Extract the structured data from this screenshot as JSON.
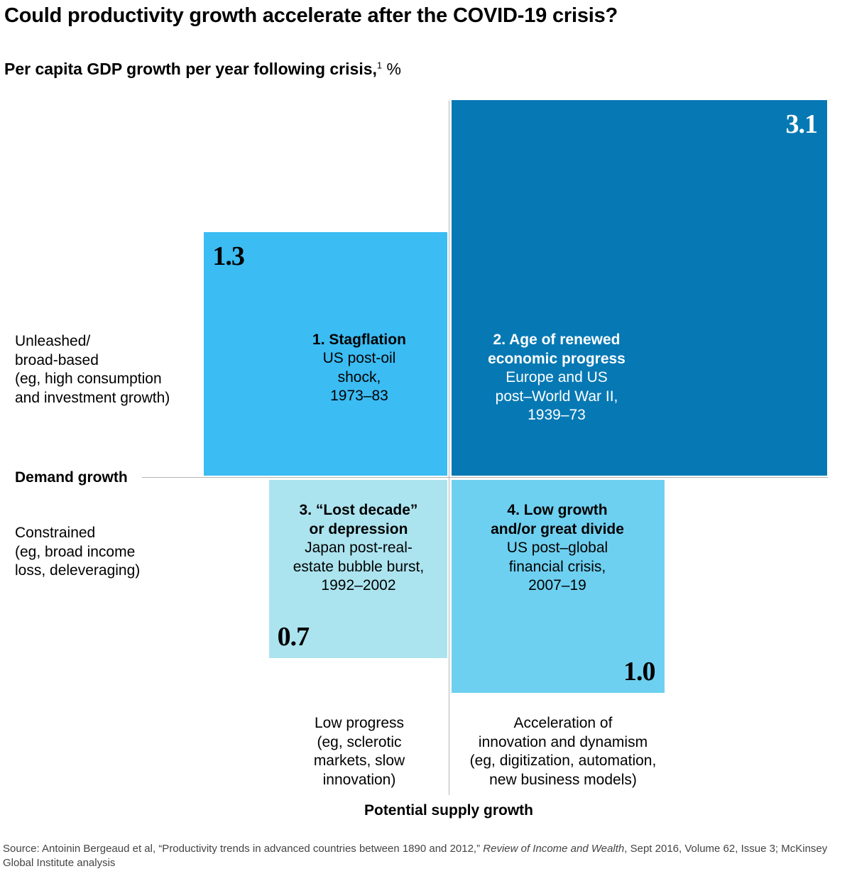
{
  "title": "Could productivity growth accelerate after the COVID-19 crisis?",
  "subtitle": "Per capita GDP growth per year following crisis,",
  "subtitle_footnote": "1",
  "subtitle_unit": "%",
  "chart_data": {
    "type": "quadrant",
    "title": "Could productivity growth accelerate after the COVID-19 crisis?",
    "ylabel": "Demand growth",
    "xlabel": "Potential supply growth",
    "y_high": [
      "Unleashed/",
      "broad-based",
      "(eg, high consumption",
      "and investment growth)"
    ],
    "y_low": [
      "Constrained",
      "(eg, broad income",
      "loss, deleveraging)"
    ],
    "x_low": [
      "Low progress",
      "(eg, sclerotic",
      "markets, slow",
      "innovation)"
    ],
    "x_high": [
      "Acceleration of",
      "innovation and dynamism",
      "(eg, digitization, automation,",
      "new business models)"
    ],
    "quadrants": [
      {
        "position": "top-left",
        "value": 1.3,
        "value_label": "1.3",
        "heading": [
          "1. Stagflation"
        ],
        "detail": [
          "US post-oil",
          "shock,",
          "1973–83"
        ],
        "color": "#3BBCF3"
      },
      {
        "position": "top-right",
        "value": 3.1,
        "value_label": "3.1",
        "heading": [
          "2. Age of renewed",
          "economic progress"
        ],
        "detail": [
          "Europe and US",
          "post–World War II,",
          "1939–73"
        ],
        "color": "#0679B4"
      },
      {
        "position": "bottom-left",
        "value": 0.7,
        "value_label": "0.7",
        "heading": [
          "3. “Lost decade”",
          "or depression"
        ],
        "detail": [
          "Japan post-real-",
          "estate bubble burst,",
          "1992–2002"
        ],
        "color": "#ABE4EF"
      },
      {
        "position": "bottom-right",
        "value": 1.0,
        "value_label": "1.0",
        "heading": [
          "4. Low growth",
          "and/or great divide"
        ],
        "detail": [
          "US post–global",
          "financial crisis,",
          "2007–19"
        ],
        "color": "#6ED0F0"
      }
    ]
  },
  "source": {
    "prefix": "Source: Antoinin Bergeaud et al, “Productivity trends in advanced countries between 1890 and 2012,” ",
    "journal": "Review of Income and Wealth",
    "suffix": ", Sept 2016, Volume 62, Issue 3; McKinsey Global Institute analysis"
  }
}
